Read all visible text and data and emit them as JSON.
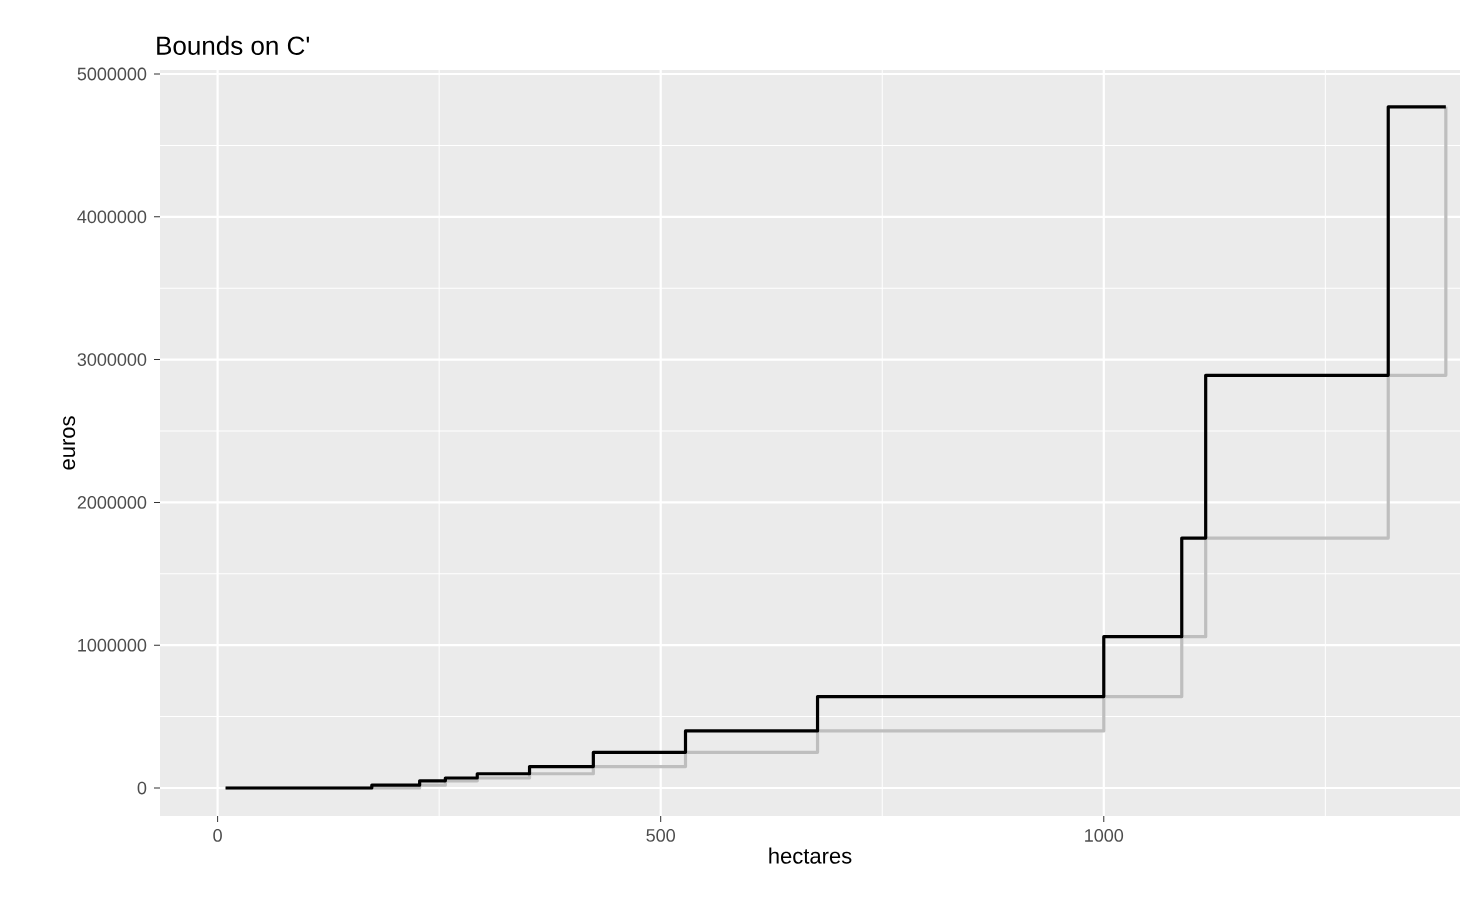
{
  "chart_data": {
    "type": "step",
    "title": "Bounds on C'",
    "xlabel": "hectares",
    "ylabel": "euros",
    "series": [
      {
        "color": "#bebebe",
        "x": [
          9,
          174,
          228,
          257,
          293,
          352,
          424,
          528,
          677,
          1000,
          1088,
          1115,
          1321,
          1386
        ],
        "values": [
          0,
          0,
          20000,
          50000,
          70000,
          100000,
          150000,
          250000,
          400000,
          640000,
          1060000,
          1750000,
          2890000,
          4770000
        ]
      },
      {
        "color": "#000000",
        "x": [
          9,
          174,
          228,
          257,
          293,
          352,
          424,
          528,
          677,
          1000,
          1088,
          1115,
          1321,
          1386
        ],
        "values": [
          0,
          20000,
          50000,
          70000,
          100000,
          150000,
          250000,
          400000,
          640000,
          1060000,
          1750000,
          2890000,
          4770000,
          4770000
        ]
      }
    ],
    "xlim": [
      -65,
      1402
    ],
    "ylim": [
      -196000,
      5028000
    ],
    "xticks": [
      0,
      500,
      1000
    ],
    "yticks": [
      0,
      1000000,
      2000000,
      3000000,
      4000000,
      5000000
    ],
    "grid": true,
    "legend": false,
    "marker": "none",
    "line_style": "solid"
  }
}
